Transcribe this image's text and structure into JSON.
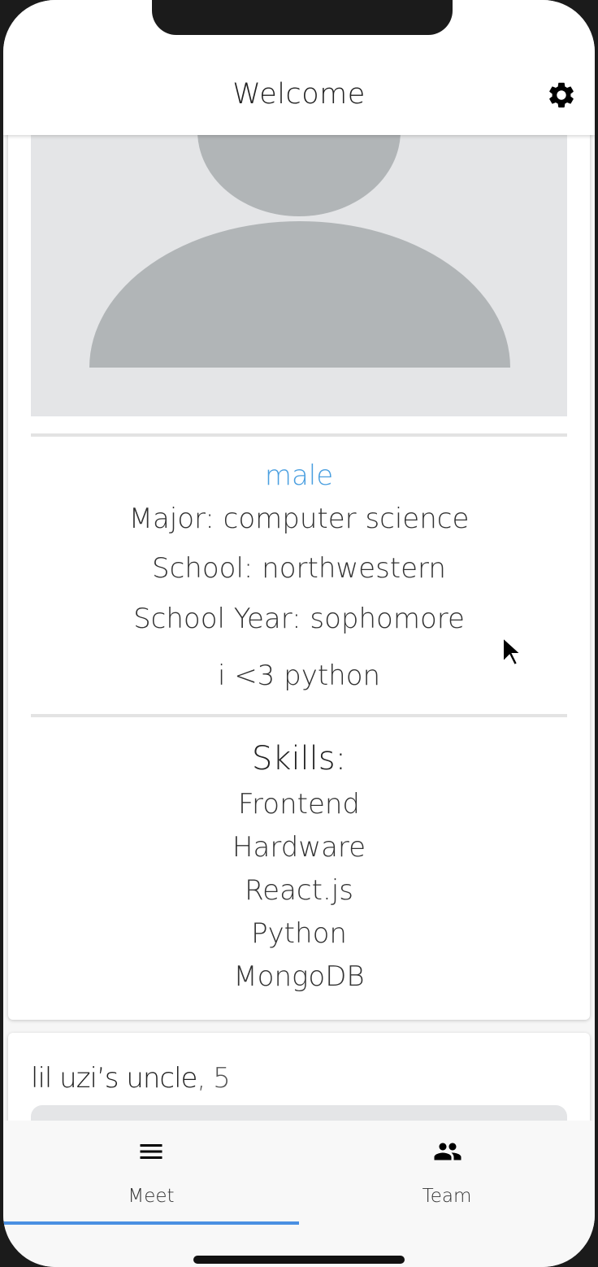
{
  "header": {
    "title": "Welcome",
    "settings_icon": "gear-icon"
  },
  "profile": {
    "gender": "male",
    "major": "Major: computer science",
    "school": "School: northwestern",
    "school_year": "School Year: sophomore",
    "bio": "i <3 python",
    "skills_heading": "Skills:",
    "skills": [
      "Frontend",
      "Hardware",
      "React.js",
      "Python",
      "MongoDB"
    ]
  },
  "next_card": {
    "name": "lil uzi’s uncle",
    "age": ", 5"
  },
  "tabs": [
    {
      "label": "Meet",
      "icon": "menu-icon",
      "active": true
    },
    {
      "label": "Team",
      "icon": "people-icon",
      "active": false
    }
  ],
  "colors": {
    "accent": "#4a90e2",
    "gender": "#4a9fe0",
    "avatar_bg": "#e4e5e7",
    "avatar_fg": "#b1b5b7"
  }
}
